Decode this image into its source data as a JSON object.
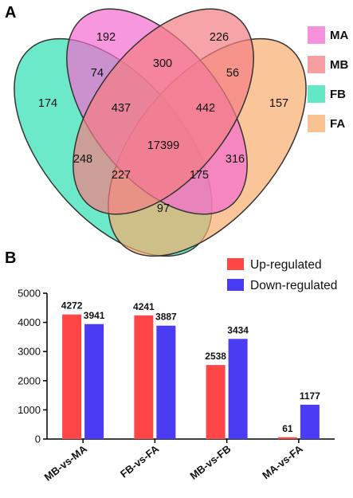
{
  "panels": {
    "a_label": "A",
    "b_label": "B"
  },
  "colors": {
    "MA": "#f46bd0",
    "MB": "#f47e83",
    "FB": "#2ee0b0",
    "FA": "#f8ad6e",
    "up": "#ff4646",
    "down": "#4a3cf5"
  },
  "chart_data": [
    {
      "type": "venn",
      "sets": [
        "MA",
        "MB",
        "FB",
        "FA"
      ],
      "legend": [
        "MA",
        "MB",
        "FB",
        "FA"
      ],
      "legend_position": "right",
      "regions": [
        {
          "sets": [
            "MA"
          ],
          "value": 192
        },
        {
          "sets": [
            "MB"
          ],
          "value": 226
        },
        {
          "sets": [
            "FB"
          ],
          "value": 174
        },
        {
          "sets": [
            "FA"
          ],
          "value": 157
        },
        {
          "sets": [
            "MA",
            "MB"
          ],
          "value": 300
        },
        {
          "sets": [
            "MA",
            "FB"
          ],
          "value": 74
        },
        {
          "sets": [
            "MB",
            "FA"
          ],
          "value": 56
        },
        {
          "sets": [
            "MA",
            "MB",
            "FB"
          ],
          "value": 437
        },
        {
          "sets": [
            "MA",
            "MB",
            "FA"
          ],
          "value": 442
        },
        {
          "sets": [
            "MA",
            "MB",
            "FB",
            "FA"
          ],
          "value": 17399
        },
        {
          "sets": [
            "FB",
            "FA"
          ],
          "value": 97
        },
        {
          "sets": [
            "MA",
            "FB",
            "FA"
          ],
          "value": 227
        },
        {
          "sets": [
            "MB",
            "FB",
            "FA"
          ],
          "value": 175
        },
        {
          "sets": [
            "MA",
            "FA"
          ],
          "value": 316
        },
        {
          "sets": [
            "MB",
            "FB"
          ],
          "value": 248
        }
      ]
    },
    {
      "type": "bar",
      "categories": [
        "MB-vs-MA",
        "FB-vs-FA",
        "MB-vs-FB",
        "MA-vs-FA"
      ],
      "series": [
        {
          "name": "Up-regulated",
          "values": [
            4272,
            4241,
            2538,
            61
          ]
        },
        {
          "name": "Down-regulated",
          "values": [
            3941,
            3887,
            3434,
            1177
          ]
        }
      ],
      "ylim": [
        0,
        5000
      ],
      "yticks": [
        "0",
        "1000",
        "2000",
        "3000",
        "4000",
        "5000"
      ],
      "legend_position": "top-right",
      "grid": false
    }
  ]
}
